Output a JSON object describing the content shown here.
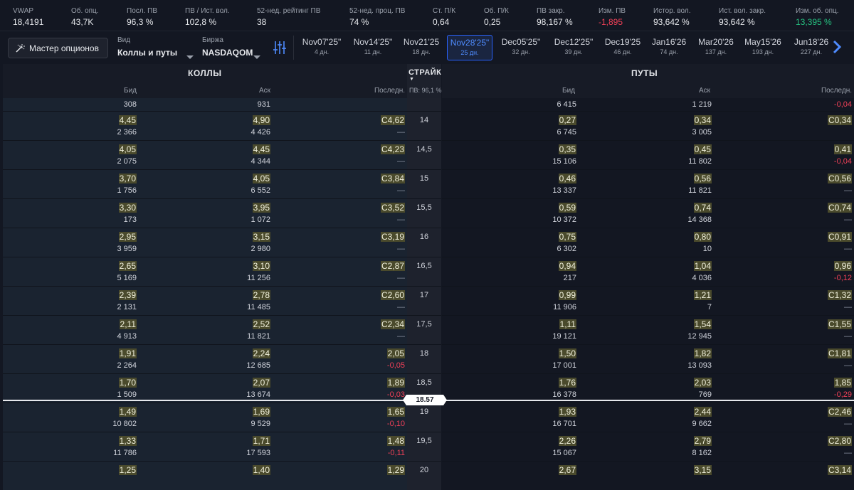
{
  "stats": [
    {
      "label": "VWAP",
      "value": "18,4191",
      "tone": ""
    },
    {
      "label": "Об. опц.",
      "value": "43,7K",
      "tone": ""
    },
    {
      "label": "Посл. ПВ",
      "value": "96,3 %",
      "tone": ""
    },
    {
      "label": "ПВ / Ист. вол.",
      "value": "102,8 %",
      "tone": ""
    },
    {
      "label": "52-нед. рейтинг ПВ",
      "value": "38",
      "tone": ""
    },
    {
      "label": "52-нед. проц. ПВ",
      "value": "74 %",
      "tone": ""
    },
    {
      "label": "Ст. П/К",
      "value": "0,64",
      "tone": ""
    },
    {
      "label": "Об. П/К",
      "value": "0,25",
      "tone": ""
    },
    {
      "label": "ПВ закр.",
      "value": "98,167 %",
      "tone": ""
    },
    {
      "label": "Изм. ПВ",
      "value": "-1,895",
      "tone": "neg"
    },
    {
      "label": "Истор. вол.",
      "value": "93,642 %",
      "tone": ""
    },
    {
      "label": "Ист. вол. закр.",
      "value": "93,642 %",
      "tone": ""
    },
    {
      "label": "Изм. об. опц.",
      "value": "13,395 %",
      "tone": "pos"
    }
  ],
  "toolbar": {
    "wizard_label": "Мастер опционов",
    "view_label": "Вид",
    "view_value": "Коллы и путы",
    "exchange_label": "Биржа",
    "exchange_value": "NASDAQOM"
  },
  "expirations": [
    {
      "date": "Nov07'25\"",
      "days": "4 дн.",
      "active": false
    },
    {
      "date": "Nov14'25\"",
      "days": "11 дн.",
      "active": false
    },
    {
      "date": "Nov21'25",
      "days": "18 дн.",
      "active": false
    },
    {
      "date": "Nov28'25\"",
      "days": "25 дн.",
      "active": true
    },
    {
      "date": "Dec05'25\"",
      "days": "32 дн.",
      "active": false
    },
    {
      "date": "Dec12'25\"",
      "days": "39 дн.",
      "active": false
    },
    {
      "date": "Dec19'25",
      "days": "46 дн.",
      "active": false
    },
    {
      "date": "Jan16'26",
      "days": "74 дн.",
      "active": false
    },
    {
      "date": "Mar20'26",
      "days": "137 дн.",
      "active": false
    },
    {
      "date": "May15'26",
      "days": "193 дн.",
      "active": false
    },
    {
      "date": "Jun18'26",
      "days": "227 дн.",
      "active": false
    }
  ],
  "table": {
    "calls_title": "КОЛЛЫ",
    "puts_title": "ПУТЫ",
    "strike_title": "СТРАЙК",
    "strike_sub": "ПВ: 96,1 %",
    "col_bid": "Бид",
    "col_ask": "Аск",
    "col_last": "Последн.",
    "price_tag": "18.57",
    "first_row": {
      "call_bid": "308",
      "call_ask": "931",
      "call_last": "",
      "put_bid": "6 415",
      "put_ask": "1 219",
      "put_last": "-0,04"
    },
    "rows": [
      {
        "strike": "14",
        "call_bid": "4,45",
        "call_bid_size": "2 366",
        "call_ask": "4,90",
        "call_ask_size": "4 426",
        "call_last": "C4,62",
        "call_chg": "—",
        "put_bid": "0,27",
        "put_bid_size": "6 745",
        "put_ask": "0,34",
        "put_ask_size": "3 005",
        "put_last": "C0,34",
        "put_chg": ""
      },
      {
        "strike": "14,5",
        "call_bid": "4,05",
        "call_bid_size": "2 075",
        "call_ask": "4,45",
        "call_ask_size": "4 344",
        "call_last": "C4,23",
        "call_chg": "—",
        "put_bid": "0,35",
        "put_bid_size": "15 106",
        "put_ask": "0,45",
        "put_ask_size": "11 802",
        "put_last": "0,41",
        "put_chg": "-0,04"
      },
      {
        "strike": "15",
        "call_bid": "3,70",
        "call_bid_size": "1 756",
        "call_ask": "4,05",
        "call_ask_size": "6 552",
        "call_last": "C3,84",
        "call_chg": "—",
        "put_bid": "0,46",
        "put_bid_size": "13 337",
        "put_ask": "0,56",
        "put_ask_size": "11 821",
        "put_last": "C0,56",
        "put_chg": "—"
      },
      {
        "strike": "15,5",
        "call_bid": "3,30",
        "call_bid_size": "173",
        "call_ask": "3,95",
        "call_ask_size": "1 072",
        "call_last": "C3,52",
        "call_chg": "—",
        "put_bid": "0,59",
        "put_bid_size": "10 372",
        "put_ask": "0,74",
        "put_ask_size": "14 368",
        "put_last": "C0,74",
        "put_chg": "—"
      },
      {
        "strike": "16",
        "call_bid": "2,95",
        "call_bid_size": "3 959",
        "call_ask": "3,15",
        "call_ask_size": "2 980",
        "call_last": "C3,19",
        "call_chg": "—",
        "put_bid": "0,75",
        "put_bid_size": "6 302",
        "put_ask": "0,80",
        "put_ask_size": "10",
        "put_last": "C0,91",
        "put_chg": "—"
      },
      {
        "strike": "16,5",
        "call_bid": "2,65",
        "call_bid_size": "5 169",
        "call_ask": "3,10",
        "call_ask_size": "11 256",
        "call_last": "C2,87",
        "call_chg": "—",
        "put_bid": "0,94",
        "put_bid_size": "217",
        "put_ask": "1,04",
        "put_ask_size": "4 036",
        "put_last": "0,96",
        "put_chg": "-0,12"
      },
      {
        "strike": "17",
        "call_bid": "2,39",
        "call_bid_size": "2 131",
        "call_ask": "2,78",
        "call_ask_size": "11 485",
        "call_last": "C2,60",
        "call_chg": "—",
        "put_bid": "0,99",
        "put_bid_size": "11 906",
        "put_ask": "1,21",
        "put_ask_size": "7",
        "put_last": "C1,32",
        "put_chg": "—"
      },
      {
        "strike": "17,5",
        "call_bid": "2,11",
        "call_bid_size": "4 913",
        "call_ask": "2,52",
        "call_ask_size": "11 821",
        "call_last": "C2,34",
        "call_chg": "—",
        "put_bid": "1,11",
        "put_bid_size": "19 121",
        "put_ask": "1,54",
        "put_ask_size": "12 945",
        "put_last": "C1,55",
        "put_chg": "—"
      },
      {
        "strike": "18",
        "call_bid": "1,91",
        "call_bid_size": "2 264",
        "call_ask": "2,24",
        "call_ask_size": "12 685",
        "call_last": "2,05",
        "call_chg": "-0,05",
        "put_bid": "1,50",
        "put_bid_size": "17 001",
        "put_ask": "1,82",
        "put_ask_size": "13 093",
        "put_last": "C1,81",
        "put_chg": "—"
      },
      {
        "strike": "18,5",
        "call_bid": "1,70",
        "call_bid_size": "1 509",
        "call_ask": "2,07",
        "call_ask_size": "13 674",
        "call_last": "1,89",
        "call_chg": "-0,03",
        "put_bid": "1,76",
        "put_bid_size": "16 378",
        "put_ask": "2,03",
        "put_ask_size": "769",
        "put_last": "1,85",
        "put_chg": "-0,29"
      },
      {
        "strike": "19",
        "call_bid": "1,49",
        "call_bid_size": "10 802",
        "call_ask": "1,69",
        "call_ask_size": "9 529",
        "call_last": "1,65",
        "call_chg": "-0,10",
        "put_bid": "1,93",
        "put_bid_size": "16 701",
        "put_ask": "2,44",
        "put_ask_size": "9 662",
        "put_last": "C2,46",
        "put_chg": "—"
      },
      {
        "strike": "19,5",
        "call_bid": "1,33",
        "call_bid_size": "11 786",
        "call_ask": "1,71",
        "call_ask_size": "17 593",
        "call_last": "1,48",
        "call_chg": "-0,11",
        "put_bid": "2,26",
        "put_bid_size": "15 067",
        "put_ask": "2,79",
        "put_ask_size": "8 162",
        "put_last": "C2,80",
        "put_chg": "—"
      },
      {
        "strike": "20",
        "call_bid": "1,25",
        "call_bid_size": "",
        "call_ask": "1,40",
        "call_ask_size": "",
        "call_last": "1,29",
        "call_chg": "",
        "put_bid": "2,67",
        "put_bid_size": "",
        "put_ask": "3,15",
        "put_ask_size": "",
        "put_last": "C3,14",
        "put_chg": ""
      }
    ]
  }
}
